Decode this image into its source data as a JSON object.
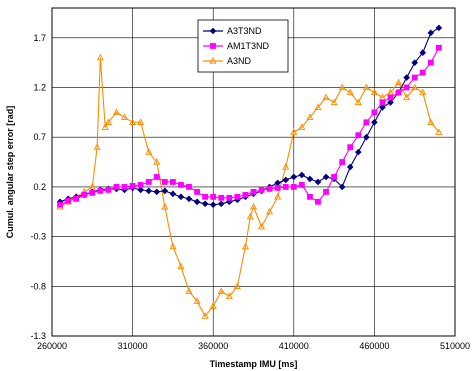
{
  "chart_data": {
    "type": "line",
    "title": "",
    "xlabel": "Timestamp IMU [ms]",
    "ylabel": "Cumul. angular step error [rad]",
    "xlim": [
      260000,
      510000
    ],
    "ylim": [
      -1.3,
      2.0
    ],
    "xticks": [
      260000,
      310000,
      360000,
      410000,
      460000,
      510000
    ],
    "xtick_labels": [
      "260000",
      "310000",
      "360000",
      "410000",
      "460000",
      "510000"
    ],
    "yticks": [
      -1.3,
      -0.8,
      -0.3,
      0.2,
      0.7,
      1.2,
      1.7
    ],
    "ytick_labels": [
      "-1.3",
      "-0.8",
      "-0.3",
      "0.2",
      "0.7",
      "1.2",
      "1.7"
    ],
    "grid": true,
    "legend_position": "top-center",
    "series": [
      {
        "name": "A3T3ND",
        "color": "#000080",
        "marker": "diamond",
        "x": [
          265000,
          270000,
          275000,
          280000,
          285000,
          290000,
          295000,
          300000,
          305000,
          310000,
          315000,
          320000,
          325000,
          330000,
          335000,
          340000,
          345000,
          350000,
          355000,
          360000,
          365000,
          370000,
          375000,
          380000,
          385000,
          390000,
          395000,
          400000,
          405000,
          410000,
          415000,
          420000,
          425000,
          430000,
          435000,
          440000,
          445000,
          450000,
          455000,
          460000,
          465000,
          470000,
          475000,
          480000,
          485000,
          490000,
          495000,
          500000
        ],
        "y": [
          0.05,
          0.08,
          0.1,
          0.12,
          0.15,
          0.17,
          0.18,
          0.18,
          0.17,
          0.19,
          0.17,
          0.16,
          0.15,
          0.16,
          0.13,
          0.1,
          0.08,
          0.05,
          0.03,
          0.02,
          0.03,
          0.05,
          0.07,
          0.1,
          0.13,
          0.16,
          0.2,
          0.24,
          0.27,
          0.3,
          0.32,
          0.28,
          0.25,
          0.3,
          0.28,
          0.2,
          0.4,
          0.55,
          0.7,
          0.85,
          1.0,
          1.05,
          1.15,
          1.3,
          1.45,
          1.55,
          1.75,
          1.8
        ]
      },
      {
        "name": "AM1T3ND",
        "color": "#ff00ff",
        "marker": "square",
        "x": [
          265000,
          270000,
          275000,
          280000,
          285000,
          290000,
          295000,
          300000,
          305000,
          310000,
          315000,
          320000,
          325000,
          330000,
          335000,
          340000,
          345000,
          350000,
          355000,
          360000,
          365000,
          370000,
          375000,
          380000,
          385000,
          390000,
          395000,
          400000,
          405000,
          410000,
          415000,
          420000,
          425000,
          430000,
          435000,
          440000,
          445000,
          450000,
          455000,
          460000,
          465000,
          470000,
          475000,
          480000,
          485000,
          490000,
          495000,
          500000
        ],
        "y": [
          0.02,
          0.06,
          0.08,
          0.12,
          0.14,
          0.16,
          0.17,
          0.2,
          0.2,
          0.21,
          0.22,
          0.25,
          0.3,
          0.25,
          0.25,
          0.22,
          0.2,
          0.15,
          0.1,
          0.1,
          0.09,
          0.09,
          0.1,
          0.12,
          0.15,
          0.17,
          0.18,
          0.19,
          0.2,
          0.2,
          0.22,
          0.1,
          0.05,
          0.15,
          0.3,
          0.45,
          0.6,
          0.72,
          0.85,
          0.95,
          1.05,
          1.1,
          1.15,
          1.2,
          1.3,
          1.35,
          1.45,
          1.6
        ]
      },
      {
        "name": "A3ND",
        "color": "#ff8c00",
        "marker": "triangle",
        "x": [
          265000,
          270000,
          275000,
          280000,
          285000,
          288000,
          290000,
          293000,
          295000,
          300000,
          305000,
          310000,
          315000,
          320000,
          325000,
          330000,
          335000,
          340000,
          345000,
          350000,
          355000,
          360000,
          365000,
          370000,
          375000,
          380000,
          383000,
          385000,
          390000,
          395000,
          400000,
          405000,
          410000,
          415000,
          420000,
          425000,
          430000,
          435000,
          440000,
          445000,
          450000,
          455000,
          460000,
          465000,
          470000,
          475000,
          480000,
          485000,
          490000,
          495000,
          500000
        ],
        "y": [
          0.0,
          0.05,
          0.1,
          0.15,
          0.2,
          0.6,
          1.5,
          0.8,
          0.85,
          0.95,
          0.9,
          0.85,
          0.85,
          0.55,
          0.45,
          0.0,
          -0.4,
          -0.6,
          -0.85,
          -0.95,
          -1.1,
          -1.0,
          -0.85,
          -0.9,
          -0.8,
          -0.4,
          -0.1,
          0.0,
          -0.2,
          -0.05,
          0.1,
          0.4,
          0.75,
          0.8,
          0.9,
          1.0,
          1.1,
          1.05,
          1.2,
          1.15,
          1.05,
          1.2,
          1.15,
          1.1,
          1.15,
          1.25,
          1.1,
          1.2,
          1.15,
          0.85,
          0.75
        ]
      }
    ]
  }
}
